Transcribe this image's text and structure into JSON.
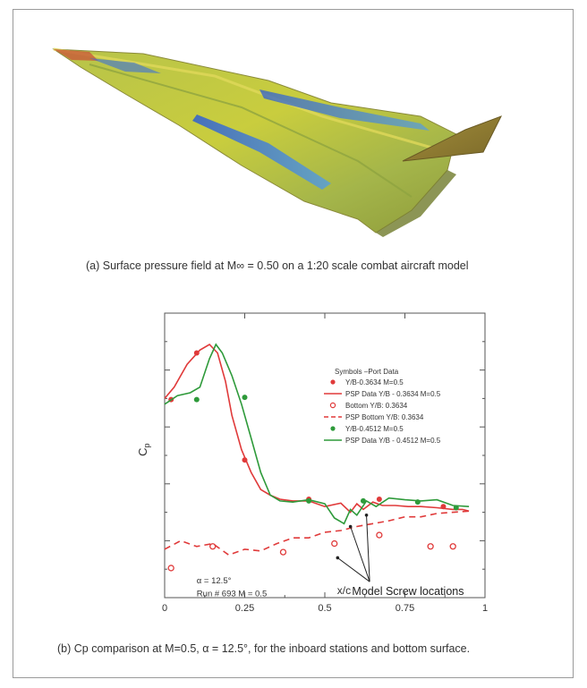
{
  "figure_a": {
    "caption": "(a)  Surface pressure field at M∞ = 0.50 on a 1:20 scale combat aircraft model"
  },
  "figure_b": {
    "caption": "(b)  Cp comparison at M=0.5, α = 12.5°, for the inboard stations and bottom surface."
  },
  "colors": {
    "red": "#e03a3a",
    "green": "#2e9a3a",
    "model_yellow": "#c9c83a",
    "model_blue": "#3a6fd8"
  },
  "chart_data": {
    "type": "line",
    "xlabel": "x/c",
    "ylabel": "Cp",
    "x_ticks": [
      "0",
      "0.25",
      "0.5",
      "0.75",
      "1"
    ],
    "xlim": [
      0,
      1
    ],
    "ylim": [
      1.0,
      -4.0
    ],
    "y_ticks_labeled": false,
    "grid": false,
    "legend_title": "Symbols –Port Data",
    "legend_position": "top-right",
    "annotation_alpha": "α = 12.5°",
    "annotation_run": "Run # 693 M = 0.5",
    "annotation_screws": "Model Screw locations",
    "series": [
      {
        "name": "Y/B-0.3634 M=0.5",
        "kind": "markers-filled",
        "color": "#e03a3a",
        "x": [
          0.02,
          0.1,
          0.25,
          0.45,
          0.67,
          0.87
        ],
        "y": [
          -2.48,
          -3.3,
          -1.42,
          -0.73,
          -0.73,
          -0.6
        ]
      },
      {
        "name": "PSP Data Y/B - 0.3634  M=0.5",
        "kind": "line-solid",
        "color": "#e03a3a",
        "x": [
          0.0,
          0.03,
          0.07,
          0.11,
          0.14,
          0.165,
          0.19,
          0.21,
          0.24,
          0.27,
          0.3,
          0.33,
          0.36,
          0.4,
          0.45,
          0.5,
          0.55,
          0.58,
          0.6,
          0.62,
          0.65,
          0.68,
          0.72,
          0.76,
          0.8,
          0.85,
          0.9,
          0.93,
          0.95
        ],
        "y": [
          -2.5,
          -2.7,
          -3.1,
          -3.35,
          -3.45,
          -3.3,
          -2.8,
          -2.2,
          -1.6,
          -1.2,
          -0.9,
          -0.8,
          -0.73,
          -0.7,
          -0.7,
          -0.6,
          -0.66,
          -0.5,
          -0.65,
          -0.55,
          -0.68,
          -0.62,
          -0.62,
          -0.6,
          -0.6,
          -0.58,
          -0.55,
          -0.55,
          -0.52
        ]
      },
      {
        "name": "Bottom Y/B: 0.3634",
        "kind": "markers-open",
        "color": "#e03a3a",
        "x": [
          0.02,
          0.15,
          0.37,
          0.53,
          0.67,
          0.83,
          0.9
        ],
        "y": [
          0.48,
          0.1,
          0.2,
          0.05,
          -0.1,
          0.1,
          0.1
        ]
      },
      {
        "name": "PSP Bottom Y/B: 0.3634",
        "kind": "line-dashed",
        "color": "#e03a3a",
        "x": [
          0.0,
          0.05,
          0.1,
          0.15,
          0.2,
          0.25,
          0.3,
          0.35,
          0.4,
          0.45,
          0.5,
          0.55,
          0.6,
          0.65,
          0.7,
          0.75,
          0.8,
          0.85,
          0.9,
          0.95
        ],
        "y": [
          0.15,
          0.0,
          0.1,
          0.05,
          0.25,
          0.15,
          0.18,
          0.05,
          -0.05,
          -0.05,
          -0.15,
          -0.18,
          -0.25,
          -0.3,
          -0.35,
          -0.42,
          -0.42,
          -0.48,
          -0.5,
          -0.52
        ]
      },
      {
        "name": "Y/B-0.4512 M=0.5",
        "kind": "markers-filled",
        "color": "#2e9a3a",
        "x": [
          0.1,
          0.25,
          0.45,
          0.62,
          0.79,
          0.91
        ],
        "y": [
          -2.48,
          -2.52,
          -0.7,
          -0.7,
          -0.68,
          -0.58
        ]
      },
      {
        "name": "PSP Data Y/B - 0.4512  M=0.5",
        "kind": "line-solid",
        "color": "#2e9a3a",
        "x": [
          0.0,
          0.04,
          0.08,
          0.11,
          0.14,
          0.16,
          0.18,
          0.21,
          0.24,
          0.27,
          0.3,
          0.33,
          0.36,
          0.4,
          0.45,
          0.5,
          0.53,
          0.56,
          0.58,
          0.6,
          0.63,
          0.66,
          0.7,
          0.75,
          0.8,
          0.85,
          0.9,
          0.95
        ],
        "y": [
          -2.4,
          -2.55,
          -2.6,
          -2.7,
          -3.2,
          -3.45,
          -3.3,
          -2.9,
          -2.4,
          -1.8,
          -1.2,
          -0.8,
          -0.7,
          -0.68,
          -0.72,
          -0.65,
          -0.4,
          -0.3,
          -0.55,
          -0.45,
          -0.7,
          -0.6,
          -0.75,
          -0.72,
          -0.7,
          -0.72,
          -0.62,
          -0.6
        ]
      }
    ]
  }
}
